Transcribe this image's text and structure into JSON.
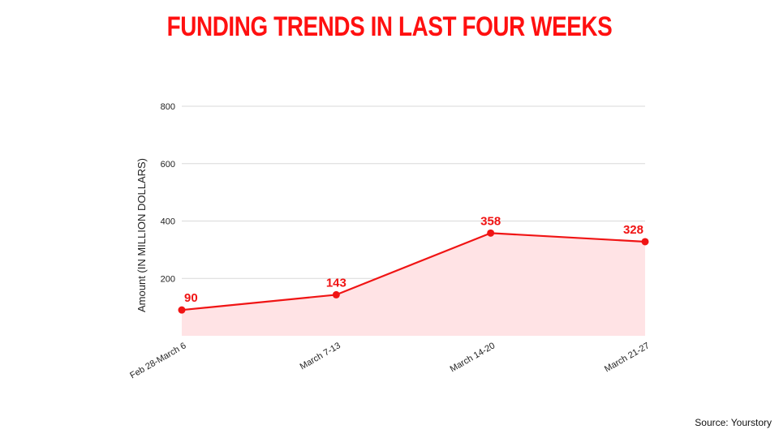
{
  "header": {
    "title": "FUNDING TRENDS IN LAST FOUR WEEKS"
  },
  "footer": {
    "source": "Source: Yourstory"
  },
  "colors": {
    "accent": "#ff1010",
    "line": "#f01414",
    "fill": "#ffe3e5",
    "grid": "#d9d9d9"
  },
  "chart_data": {
    "type": "area",
    "title": "FUNDING TRENDS IN LAST FOUR WEEKS",
    "xlabel": "",
    "ylabel": "Amount (IN MILLION DOLLARS)",
    "categories": [
      "Feb 28-March 6",
      "March 7-13",
      "March 14-20",
      "March 21-27"
    ],
    "series": [
      {
        "name": "Funding",
        "values": [
          90,
          143,
          358,
          328
        ]
      }
    ],
    "data_labels": [
      "90",
      "143",
      "358",
      "328"
    ],
    "y_ticks": [
      "200",
      "400",
      "600",
      "800"
    ],
    "ylim": [
      0,
      800
    ],
    "grid": true,
    "legend": "none"
  }
}
